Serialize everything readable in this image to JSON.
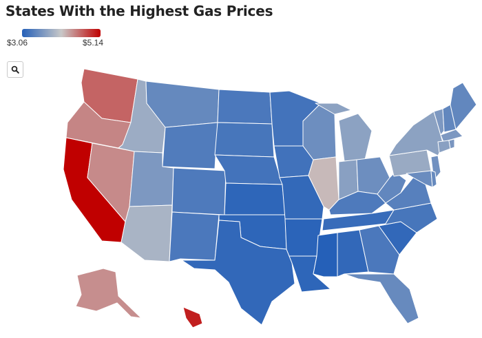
{
  "header": {
    "title": "States With the Highest Gas Prices"
  },
  "legend": {
    "min_label": "$3.06",
    "max_label": "$5.14",
    "colors": [
      "#2560b8",
      "#c8c8c8",
      "#c00000"
    ]
  },
  "controls": {
    "zoom_icon": "search-icon"
  },
  "map_data": {
    "type": "choropleth",
    "region": "United States",
    "scale_min": 3.06,
    "scale_max": 5.14,
    "states": {
      "CA": 5.14,
      "HI": 4.98,
      "WA": 4.62,
      "OR": 4.45,
      "NV": 4.42,
      "AK": 4.4,
      "IL": 4.18,
      "AZ": 3.9,
      "ID": 3.82,
      "UT": 3.62,
      "PA": 3.8,
      "NY": 3.72,
      "MI": 3.72,
      "IN": 3.7,
      "CT": 3.7,
      "VT": 3.62,
      "NJ": 3.55,
      "WI": 3.52,
      "OH": 3.52,
      "ME": 3.45,
      "NH": 3.45,
      "FL": 3.48,
      "MA": 3.62,
      "RI": 3.6,
      "MT": 3.47,
      "WV": 3.45,
      "MD": 3.5,
      "DE": 3.48,
      "VA": 3.38,
      "KY": 3.32,
      "WY": 3.34,
      "CO": 3.32,
      "NM": 3.3,
      "GA": 3.3,
      "NC": 3.28,
      "ND": 3.3,
      "SD": 3.28,
      "MN": 3.25,
      "NE": 3.25,
      "IA": 3.24,
      "TN": 3.18,
      "SC": 3.14,
      "AL": 3.14,
      "MO": 3.15,
      "TX": 3.14,
      "OK": 3.12,
      "LA": 3.12,
      "KS": 3.12,
      "AR": 3.1,
      "MS": 3.06
    }
  }
}
